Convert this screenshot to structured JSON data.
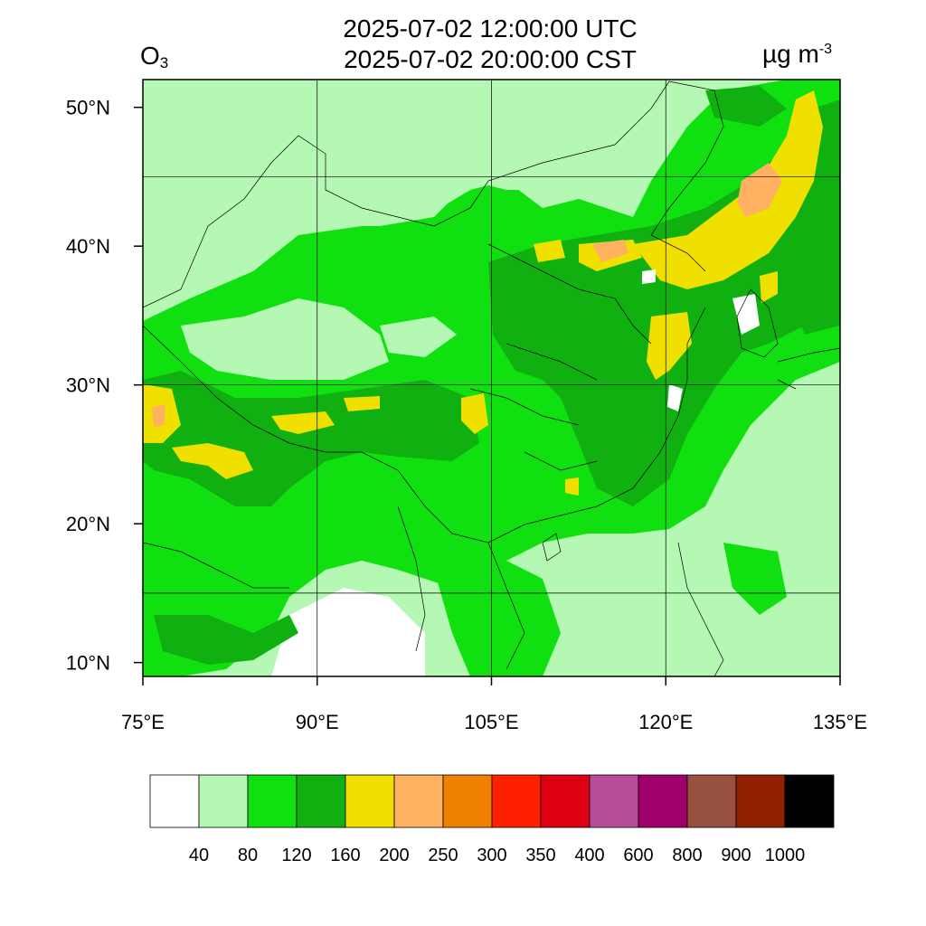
{
  "header": {
    "title_utc": "2025-07-02 12:00:00 UTC",
    "title_local": "2025-07-02 20:00:00 CST",
    "species_base": "O",
    "species_sub": "3",
    "units_base": "µg m",
    "units_sup": "-3"
  },
  "map": {
    "lon_range": [
      75,
      135
    ],
    "lat_range": [
      9,
      52
    ],
    "lon_ticks": [
      75,
      90,
      105,
      120,
      135
    ],
    "lat_ticks": [
      10,
      20,
      30,
      40,
      50
    ],
    "lon_labels": [
      "75°E",
      "90°E",
      "105°E",
      "120°E",
      "135°E"
    ],
    "lat_labels": [
      "10°N",
      "20°N",
      "30°N",
      "40°N",
      "50°N"
    ],
    "grid_lons": [
      90,
      105,
      120
    ],
    "grid_lats": [
      15,
      30,
      45
    ]
  },
  "legend": {
    "colors": [
      "#ffffff",
      "#b4f8b4",
      "#10e010",
      "#10b010",
      "#f0e000",
      "#ffb060",
      "#f08000",
      "#ff2000",
      "#dc0010",
      "#b84c98",
      "#a0006c",
      "#985040",
      "#902000",
      "#000000"
    ],
    "labels": [
      "40",
      "80",
      "120",
      "160",
      "200",
      "250",
      "300",
      "350",
      "400",
      "600",
      "800",
      "900",
      "1000"
    ]
  }
}
